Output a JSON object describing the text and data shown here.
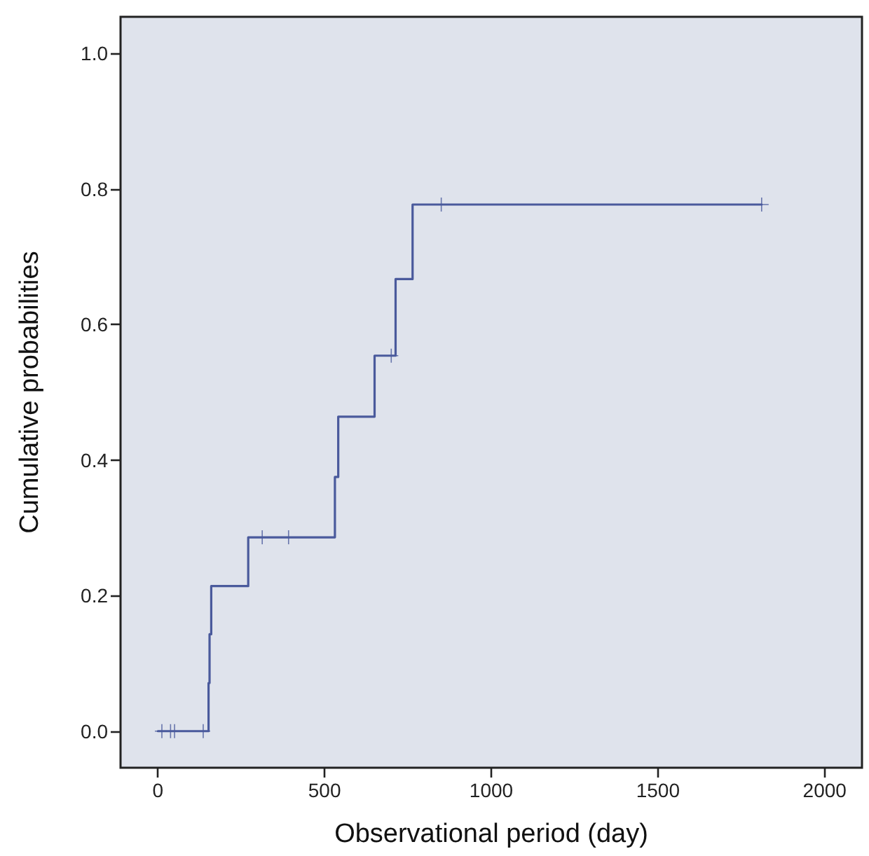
{
  "chart_data": {
    "type": "step",
    "xlabel": "Observational period (day)",
    "ylabel": "Cumulative probabilities",
    "xlim": [
      -112,
      2112
    ],
    "ylim": [
      -0.054,
      1.054
    ],
    "xticks": [
      0,
      500,
      1000,
      1500,
      2000
    ],
    "yticks": [
      {
        "value": 0,
        "label": "0.0"
      },
      {
        "value": 0.2,
        "label": "0.2"
      },
      {
        "value": 0.4,
        "label": "0.4"
      },
      {
        "value": 0.6,
        "label": "0.6"
      },
      {
        "value": 0.8,
        "label": "0.8"
      },
      {
        "value": 1,
        "label": "1.0"
      }
    ],
    "series": [
      {
        "color": "#4a5a9c",
        "marker": "none",
        "x": [
          0,
          152,
          155,
          160,
          271,
          531,
          541,
          650,
          713,
          764,
          1811
        ],
        "values": [
          0,
          0.071,
          0.143,
          0.214,
          0.286,
          0.375,
          0.464,
          0.554,
          0.667,
          0.777,
          0.777
        ]
      },
      {
        "type": "scatter",
        "color": "#4a5a9c",
        "marker": "cross",
        "x": [
          12,
          38,
          50,
          136,
          313,
          392,
          700,
          850,
          1811
        ],
        "values": [
          0,
          0,
          0,
          0,
          0.286,
          0.286,
          0.554,
          0.777,
          0.777
        ]
      }
    ]
  }
}
